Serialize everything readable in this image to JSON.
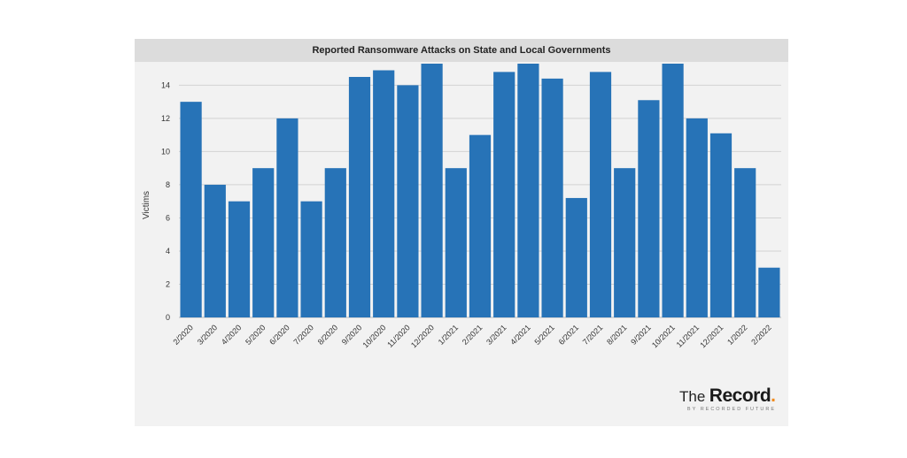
{
  "chart_data": {
    "type": "bar",
    "title": "Reported Ransomware Attacks on State and Local Governments",
    "ylabel": "Victims",
    "xlabel": "",
    "ylim": [
      0,
      15.3
    ],
    "yticks": [
      0,
      2,
      4,
      6,
      8,
      10,
      12,
      14
    ],
    "grid": true,
    "bar_color": "#2773b7",
    "categories": [
      "2/2020",
      "3/2020",
      "4/2020",
      "5/2020",
      "6/2020",
      "7/2020",
      "8/2020",
      "9/2020",
      "10/2020",
      "11/2020",
      "12/2020",
      "1/2021",
      "2/2021",
      "3/2021",
      "4/2021",
      "5/2021",
      "6/2021",
      "7/2021",
      "8/2021",
      "9/2021",
      "10/2021",
      "11/2021",
      "12/2021",
      "1/2022",
      "2/2022"
    ],
    "values": [
      13,
      8,
      7,
      9,
      12,
      7,
      9,
      14.5,
      14.9,
      14,
      15.3,
      9,
      11,
      14.8,
      15.3,
      14.4,
      7.2,
      14.8,
      9,
      13.1,
      15.3,
      12,
      11.1,
      9,
      3
    ]
  },
  "brand": {
    "the": "The",
    "record": "Record",
    "dot": ".",
    "sub": "BY RECORDED FUTURE",
    "accent": "#f08a1c"
  }
}
